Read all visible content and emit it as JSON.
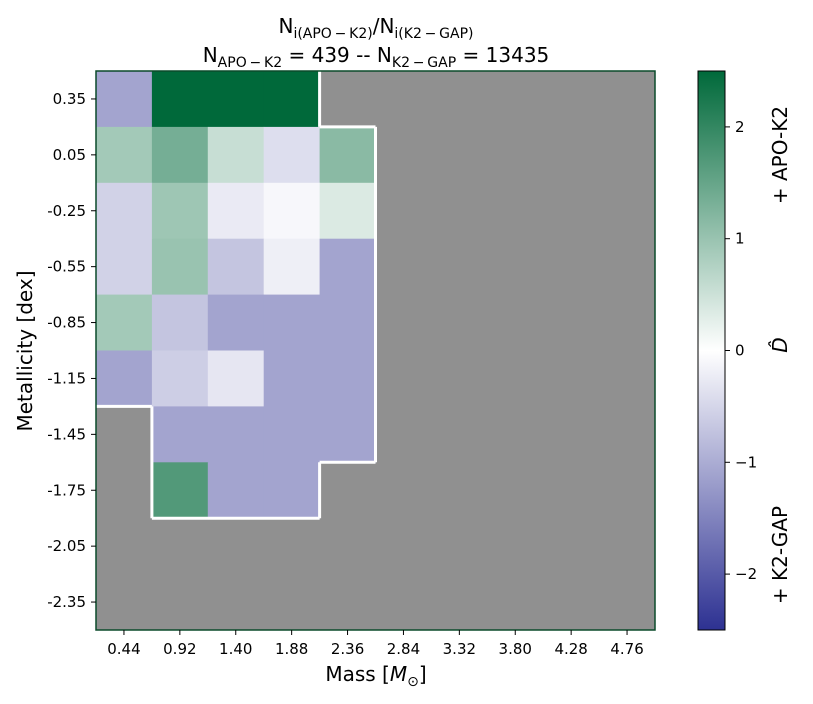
{
  "chart_data": {
    "type": "heatmap",
    "title_line1": {
      "base1": "N",
      "sub1": "i(APO − K2)",
      "slash": "/",
      "base2": "N",
      "sub2": "i(K2 − GAP)"
    },
    "title_line2": {
      "base1": "N",
      "sub1": "APO − K2",
      "mid": " = 439 -- ",
      "base2": "N",
      "sub2": "K2 − GAP",
      "tail": " = 13435"
    },
    "xlabel": {
      "text": "Mass [",
      "symbol": "M",
      "sub": "⊙",
      "close": "]"
    },
    "ylabel": "Metallicity [dex]",
    "x_ticks": [
      "0.44",
      "0.92",
      "1.40",
      "1.88",
      "2.36",
      "2.84",
      "3.32",
      "3.80",
      "4.28",
      "4.76"
    ],
    "y_ticks": [
      "0.35",
      "0.05",
      "-0.25",
      "-0.55",
      "-0.85",
      "-1.15",
      "-1.45",
      "-1.75",
      "-2.05",
      "-2.35"
    ],
    "colorbar": {
      "ticks": [
        "2",
        "1",
        "0",
        "−1",
        "−2"
      ],
      "tick_values": [
        2,
        1,
        0,
        -1,
        -2
      ],
      "range": [
        -2.5,
        2.5
      ],
      "label_top": "+ APO-K2",
      "label_mid": "D̂",
      "label_bottom": "+ K2-GAP",
      "colors": {
        "high": "#00693a",
        "mid": "#ffffff",
        "low": "#2d3192"
      }
    },
    "empty_color": "#909090",
    "cells": [
      [
        -1.1,
        2.5,
        2.5,
        2.5,
        null,
        null,
        null,
        null,
        null,
        null
      ],
      [
        0.9,
        1.35,
        0.55,
        -0.4,
        1.15,
        null,
        null,
        null,
        null,
        null
      ],
      [
        -0.55,
        0.95,
        -0.25,
        -0.1,
        0.35,
        null,
        null,
        null,
        null,
        null
      ],
      [
        -0.55,
        1.0,
        -0.7,
        -0.2,
        -1.1,
        null,
        null,
        null,
        null,
        null
      ],
      [
        0.9,
        -0.7,
        -1.1,
        -1.1,
        -1.1,
        null,
        null,
        null,
        null,
        null
      ],
      [
        -1.1,
        -0.6,
        -0.3,
        -1.1,
        -1.1,
        null,
        null,
        null,
        null,
        null
      ],
      [
        null,
        -1.1,
        -1.1,
        -1.1,
        -1.1,
        null,
        null,
        null,
        null,
        null
      ],
      [
        null,
        1.7,
        -1.1,
        -1.1,
        null,
        null,
        null,
        null,
        null,
        null
      ],
      [
        null,
        null,
        null,
        null,
        null,
        null,
        null,
        null,
        null,
        null
      ],
      [
        null,
        null,
        null,
        null,
        null,
        null,
        null,
        null,
        null,
        null
      ]
    ]
  }
}
